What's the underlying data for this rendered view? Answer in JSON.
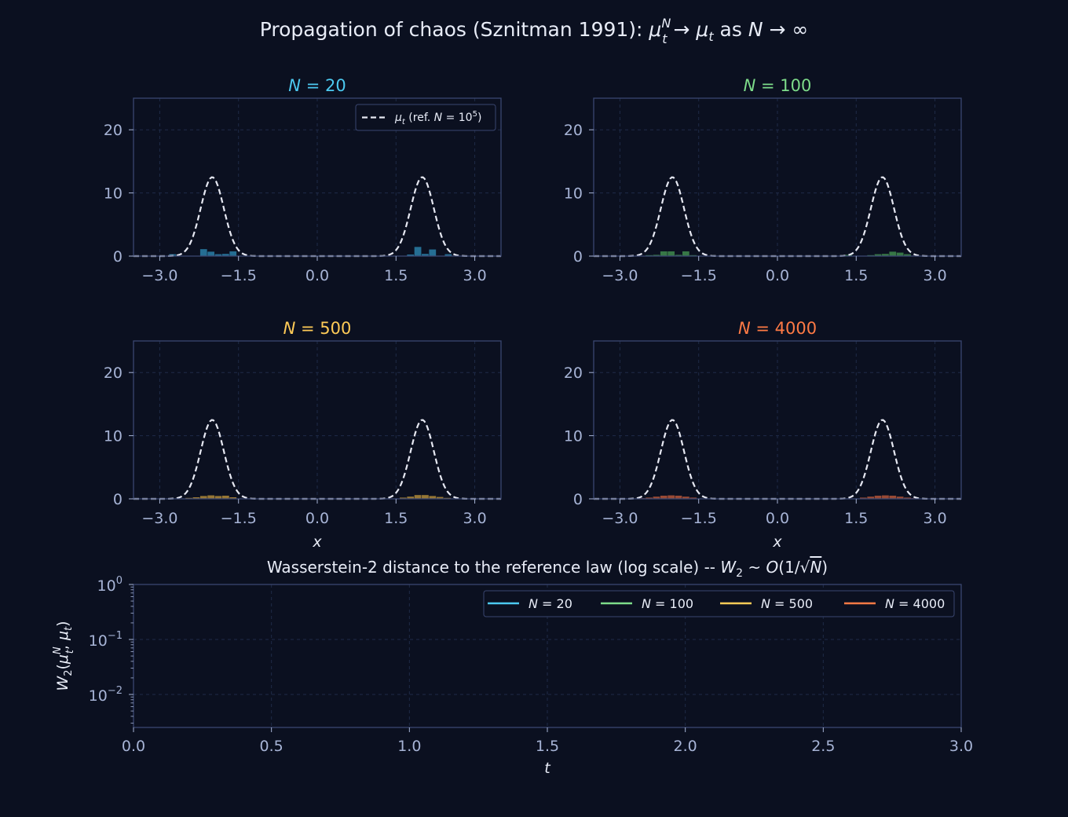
{
  "figure": {
    "background": "#0b1020",
    "axes_face": "#0b1020",
    "spine_color": "#3a4670",
    "tick_color": "#a7b4d6",
    "text_color": "#e8ecf7",
    "grid_color": "#1f2a47",
    "ref_color": "#e6e8f2",
    "title": {
      "pre": "Propagation of chaos (Sznitman 1991):  ",
      "mu": "μ",
      "sup": "N",
      "sub": "t",
      "arrow": " → ",
      "mu2": "μ",
      "sub2": "t",
      "as": "  as  ",
      "N": "N",
      "arrow2": " → ∞"
    }
  },
  "chart_data": [
    {
      "type": "area",
      "title": {
        "N": "N",
        "eq": " = ",
        "val": "20"
      },
      "color": "#4cc9f0",
      "hist_color": "#2a7fa8",
      "xlim": [
        -3.5,
        3.5
      ],
      "ylim": [
        0,
        25
      ],
      "xticks": [
        -3.0,
        -1.5,
        0.0,
        1.5,
        3.0
      ],
      "xtick_labels": [
        "−3.0",
        "−1.5",
        "0.0",
        "1.5",
        "3.0"
      ],
      "yticks": [
        0,
        10,
        20
      ],
      "ytick_labels": [
        "0",
        "10",
        "20"
      ],
      "xlabel": "",
      "legend": {
        "mu": "μ",
        "sub": "t",
        "text": " (ref. ",
        "N": "N",
        "eq": " = 10",
        "sup": "5",
        "close": ")",
        "placement": "upper-right"
      },
      "reference": {
        "modes": [
          -2.0,
          2.0
        ],
        "peak": 12.5,
        "sigma": 0.22
      },
      "hist": {
        "bin_width": 0.14,
        "bins": [
          {
            "x": -2.75,
            "h": 0.3
          },
          {
            "x": -2.16,
            "h": 1.1
          },
          {
            "x": -2.02,
            "h": 0.7
          },
          {
            "x": -1.88,
            "h": 0.3
          },
          {
            "x": -1.74,
            "h": 0.35
          },
          {
            "x": -1.6,
            "h": 0.75
          },
          {
            "x": 1.78,
            "h": 0.25
          },
          {
            "x": 1.92,
            "h": 1.45
          },
          {
            "x": 2.06,
            "h": 0.35
          },
          {
            "x": 2.2,
            "h": 1.05
          },
          {
            "x": 2.5,
            "h": 0.3
          }
        ]
      }
    },
    {
      "type": "area",
      "title": {
        "N": "N",
        "eq": " = ",
        "val": "100"
      },
      "color": "#7ddc8a",
      "hist_color": "#3f8a4e",
      "xlim": [
        -3.5,
        3.5
      ],
      "ylim": [
        0,
        25
      ],
      "xticks": [
        -3.0,
        -1.5,
        0.0,
        1.5,
        3.0
      ],
      "xtick_labels": [
        "−3.0",
        "−1.5",
        "0.0",
        "1.5",
        "3.0"
      ],
      "yticks": [
        0,
        10,
        20
      ],
      "ytick_labels": [
        "0",
        "10",
        "20"
      ],
      "xlabel": "",
      "reference": {
        "modes": [
          -2.0,
          2.0
        ],
        "peak": 12.5,
        "sigma": 0.22
      },
      "hist": {
        "bin_width": 0.14,
        "bins": [
          {
            "x": -2.44,
            "h": 0.15
          },
          {
            "x": -2.3,
            "h": 0.2
          },
          {
            "x": -2.16,
            "h": 0.75
          },
          {
            "x": -2.02,
            "h": 0.75
          },
          {
            "x": -1.88,
            "h": 0.2
          },
          {
            "x": -1.74,
            "h": 0.75
          },
          {
            "x": -1.6,
            "h": 0.15
          },
          {
            "x": 1.36,
            "h": 0.2
          },
          {
            "x": 1.78,
            "h": 0.15
          },
          {
            "x": 1.92,
            "h": 0.3
          },
          {
            "x": 2.06,
            "h": 0.35
          },
          {
            "x": 2.2,
            "h": 0.7
          },
          {
            "x": 2.34,
            "h": 0.55
          },
          {
            "x": 2.48,
            "h": 0.3
          }
        ]
      }
    },
    {
      "type": "area",
      "title": {
        "N": "N",
        "eq": " = ",
        "val": "500"
      },
      "color": "#ffcb57",
      "hist_color": "#b08a3a",
      "xlim": [
        -3.5,
        3.5
      ],
      "ylim": [
        0,
        25
      ],
      "xticks": [
        -3.0,
        -1.5,
        0.0,
        1.5,
        3.0
      ],
      "xtick_labels": [
        "−3.0",
        "−1.5",
        "0.0",
        "1.5",
        "3.0"
      ],
      "yticks": [
        0,
        10,
        20
      ],
      "ytick_labels": [
        "0",
        "10",
        "20"
      ],
      "xlabel": "x",
      "reference": {
        "modes": [
          -2.0,
          2.0
        ],
        "peak": 12.5,
        "sigma": 0.22
      },
      "hist": {
        "bin_width": 0.14,
        "bins": [
          {
            "x": -2.44,
            "h": 0.15
          },
          {
            "x": -2.3,
            "h": 0.25
          },
          {
            "x": -2.16,
            "h": 0.45
          },
          {
            "x": -2.02,
            "h": 0.55
          },
          {
            "x": -1.88,
            "h": 0.45
          },
          {
            "x": -1.74,
            "h": 0.5
          },
          {
            "x": -1.6,
            "h": 0.25
          },
          {
            "x": 1.64,
            "h": 0.2
          },
          {
            "x": 1.78,
            "h": 0.35
          },
          {
            "x": 1.92,
            "h": 0.6
          },
          {
            "x": 2.06,
            "h": 0.6
          },
          {
            "x": 2.2,
            "h": 0.45
          },
          {
            "x": 2.34,
            "h": 0.3
          },
          {
            "x": 2.48,
            "h": 0.15
          }
        ]
      }
    },
    {
      "type": "area",
      "title": {
        "N": "N",
        "eq": " = ",
        "val": "4000"
      },
      "color": "#ff7a45",
      "hist_color": "#b3553a",
      "xlim": [
        -3.5,
        3.5
      ],
      "ylim": [
        0,
        25
      ],
      "xticks": [
        -3.0,
        -1.5,
        0.0,
        1.5,
        3.0
      ],
      "xtick_labels": [
        "−3.0",
        "−1.5",
        "0.0",
        "1.5",
        "3.0"
      ],
      "yticks": [
        0,
        10,
        20
      ],
      "ytick_labels": [
        "0",
        "10",
        "20"
      ],
      "xlabel": "x",
      "reference": {
        "modes": [
          -2.0,
          2.0
        ],
        "peak": 12.5,
        "sigma": 0.22
      },
      "hist": {
        "bin_width": 0.14,
        "bins": [
          {
            "x": -2.58,
            "h": 0.1
          },
          {
            "x": -2.44,
            "h": 0.2
          },
          {
            "x": -2.3,
            "h": 0.35
          },
          {
            "x": -2.16,
            "h": 0.5
          },
          {
            "x": -2.02,
            "h": 0.55
          },
          {
            "x": -1.88,
            "h": 0.5
          },
          {
            "x": -1.74,
            "h": 0.35
          },
          {
            "x": -1.6,
            "h": 0.2
          },
          {
            "x": 1.64,
            "h": 0.2
          },
          {
            "x": 1.78,
            "h": 0.35
          },
          {
            "x": 1.92,
            "h": 0.5
          },
          {
            "x": 2.06,
            "h": 0.55
          },
          {
            "x": 2.2,
            "h": 0.5
          },
          {
            "x": 2.34,
            "h": 0.35
          },
          {
            "x": 2.48,
            "h": 0.2
          },
          {
            "x": 2.62,
            "h": 0.1
          }
        ]
      }
    },
    {
      "type": "line",
      "title": {
        "pre": "Wasserstein-2 distance to the reference law (log scale)  --  ",
        "W": "W",
        "sub": "2",
        "tilde": " ~ ",
        "O": "O",
        "paren": "(1/√",
        "N": "N",
        "close": ")"
      },
      "xlim": [
        0.0,
        3.0
      ],
      "ylim_log10": [
        -2.6,
        0
      ],
      "yscale": "log",
      "xticks": [
        0.0,
        0.5,
        1.0,
        1.5,
        2.0,
        2.5,
        3.0
      ],
      "xtick_labels": [
        "0.0",
        "0.5",
        "1.0",
        "1.5",
        "2.0",
        "2.5",
        "3.0"
      ],
      "yticks_exp": [
        0,
        -1,
        -2
      ],
      "ytick_base": "10",
      "ytick_exp_labels": [
        "0",
        "−1",
        "−2"
      ],
      "xlabel": "t",
      "ylabel": {
        "W": "W",
        "sub": "2",
        "open": "(",
        "mu": "μ",
        "sup": "N",
        "subt": "t",
        "comma": ", ",
        "mu2": "μ",
        "subt2": "t",
        "close": ")"
      },
      "legend_placement": "upper-right",
      "series": [
        {
          "name": {
            "N": "N",
            "eq": " = ",
            "val": "20"
          },
          "color": "#4cc9f0",
          "x": [],
          "y": []
        },
        {
          "name": {
            "N": "N",
            "eq": " = ",
            "val": "100"
          },
          "color": "#7ddc8a",
          "x": [],
          "y": []
        },
        {
          "name": {
            "N": "N",
            "eq": " = ",
            "val": "500"
          },
          "color": "#ffcb57",
          "x": [],
          "y": []
        },
        {
          "name": {
            "N": "N",
            "eq": " = ",
            "val": "4000"
          },
          "color": "#ff7a45",
          "x": [],
          "y": []
        }
      ]
    }
  ]
}
